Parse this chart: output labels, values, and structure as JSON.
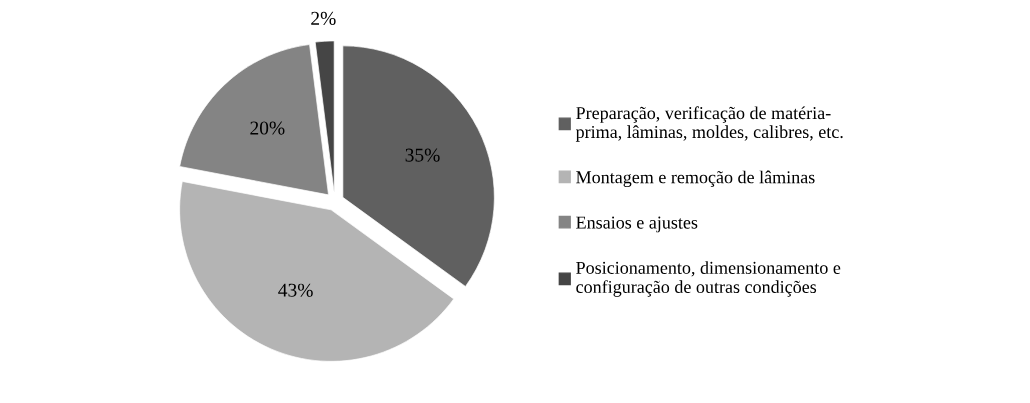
{
  "chart_data": {
    "type": "pie",
    "categories": [
      "Preparação, verificação de matéria-\nprima, lâminas, moldes, calibres, etc.",
      "Montagem e remoção de lâminas",
      "Ensaios e ajustes",
      "Posicionamento, dimensionamento e\nconfiguração de outras condições"
    ],
    "values": [
      35,
      43,
      20,
      2
    ],
    "colors": [
      "#606060",
      "#b4b4b4",
      "#848484",
      "#454545"
    ],
    "value_labels": [
      "35%",
      "43%",
      "20%",
      "2%"
    ],
    "legend": "right"
  }
}
